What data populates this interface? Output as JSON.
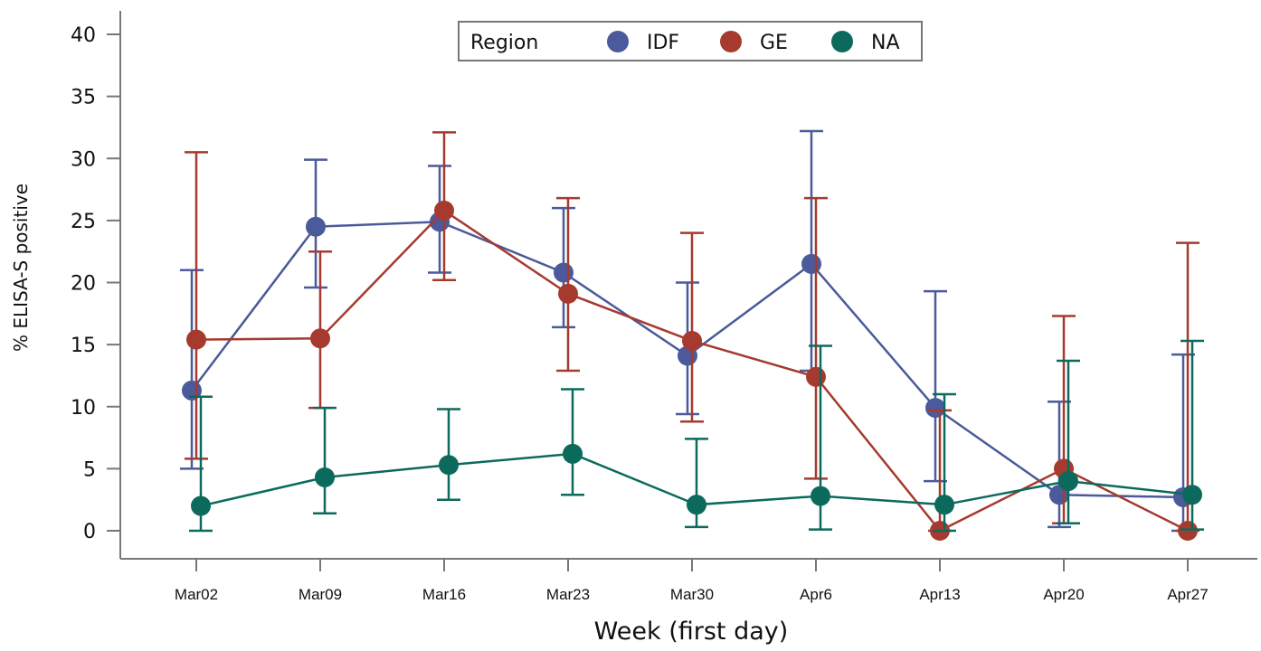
{
  "chart_data": {
    "type": "line",
    "title": "",
    "xlabel": "Week (first day)",
    "ylabel": "% ELISA-S positive",
    "categories": [
      "Mar02",
      "Mar09",
      "Mar16",
      "Mar23",
      "Mar30",
      "Apr6",
      "Apr13",
      "Apr20",
      "Apr27"
    ],
    "ylim": [
      0,
      40
    ],
    "yticks": [
      0,
      5,
      10,
      15,
      20,
      25,
      30,
      35,
      40
    ],
    "grid": false,
    "legend": {
      "title": "Region",
      "position": "top-center"
    },
    "series": [
      {
        "name": "IDF",
        "color": "#4a5a9a",
        "values": [
          11.3,
          24.5,
          24.9,
          20.8,
          14.1,
          21.5,
          9.9,
          2.9,
          2.7
        ],
        "lower": [
          5.0,
          19.6,
          20.8,
          16.4,
          9.4,
          12.9,
          4.0,
          0.3,
          0.0
        ],
        "upper": [
          21.0,
          29.9,
          29.4,
          26.0,
          20.0,
          32.2,
          19.3,
          10.4,
          14.2
        ]
      },
      {
        "name": "GE",
        "color": "#a63a2f",
        "values": [
          15.4,
          15.5,
          25.8,
          19.1,
          15.3,
          12.4,
          0.0,
          5.0,
          0.0
        ],
        "lower": [
          5.8,
          9.9,
          20.2,
          12.9,
          8.8,
          4.2,
          0.0,
          0.6,
          0.0
        ],
        "upper": [
          30.5,
          22.5,
          32.1,
          26.8,
          24.0,
          26.8,
          9.7,
          17.3,
          23.2
        ]
      },
      {
        "name": "NA",
        "color": "#0b6a5c",
        "values": [
          2.0,
          4.3,
          5.3,
          6.2,
          2.1,
          2.8,
          2.1,
          4.0,
          2.9
        ],
        "lower": [
          0.0,
          1.4,
          2.5,
          2.9,
          0.3,
          0.1,
          0.0,
          0.6,
          0.1
        ],
        "upper": [
          10.8,
          9.9,
          9.8,
          11.4,
          7.4,
          14.9,
          11.0,
          13.7,
          15.3
        ]
      }
    ]
  }
}
